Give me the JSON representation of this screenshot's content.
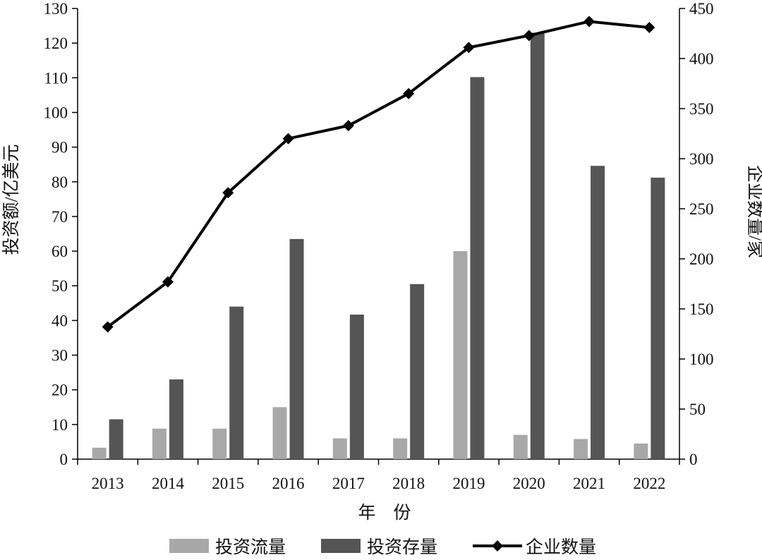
{
  "chart_data": {
    "type": "bar",
    "combo": "bar + line (secondary axis)",
    "categories": [
      "2013",
      "2014",
      "2015",
      "2016",
      "2017",
      "2018",
      "2019",
      "2020",
      "2021",
      "2022"
    ],
    "series": [
      {
        "name": "投资流量",
        "type": "bar",
        "axis": "left",
        "color": "#a8a8a8",
        "values": [
          3.3,
          8.8,
          8.8,
          15,
          6,
          6,
          60,
          7,
          5.8,
          4.5
        ]
      },
      {
        "name": "投资存量",
        "type": "bar",
        "axis": "left",
        "color": "#555555",
        "values": [
          11.5,
          23,
          44,
          63.5,
          41.7,
          50.5,
          110.2,
          123,
          84.6,
          81.2
        ]
      },
      {
        "name": "企业数量",
        "type": "line",
        "axis": "right",
        "color": "#000000",
        "marker": "diamond",
        "values": [
          132,
          177,
          266,
          320,
          333,
          365,
          411,
          423,
          437,
          431
        ]
      }
    ],
    "xlabel": "年　份",
    "ylabel": "投资额/亿美元",
    "y2label": "企业数量/家",
    "ylim": [
      0,
      130
    ],
    "y2lim": [
      0,
      450
    ],
    "yticks": [
      "0",
      "10",
      "20",
      "30",
      "40",
      "50",
      "60",
      "70",
      "80",
      "90",
      "100",
      "110",
      "120",
      "130"
    ],
    "y2ticks": [
      "0",
      "50",
      "100",
      "150",
      "200",
      "250",
      "300",
      "350",
      "400",
      "450"
    ],
    "legend_position": "bottom",
    "grid": false
  }
}
